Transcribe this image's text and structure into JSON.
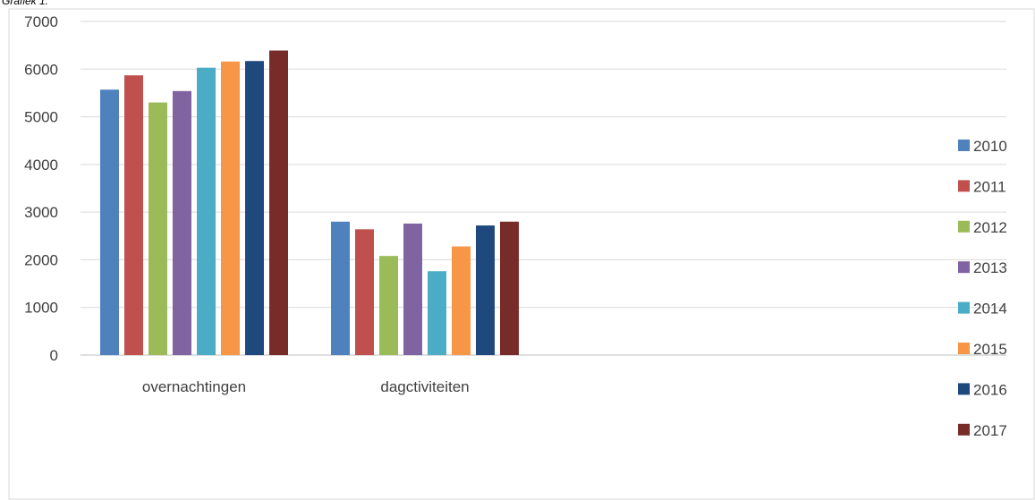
{
  "caption": "Grafiek 1.",
  "chart_data": {
    "type": "bar",
    "categories": [
      "overnachtingen",
      "dagctiviteiten"
    ],
    "series": [
      {
        "name": "2010",
        "color": "#4F81BD",
        "values": [
          5570,
          2800
        ]
      },
      {
        "name": "2011",
        "color": "#C0504D",
        "values": [
          5870,
          2640
        ]
      },
      {
        "name": "2012",
        "color": "#9BBB59",
        "values": [
          5300,
          2080
        ]
      },
      {
        "name": "2013",
        "color": "#8064A2",
        "values": [
          5540,
          2760
        ]
      },
      {
        "name": "2014",
        "color": "#4BACC6",
        "values": [
          6030,
          1760
        ]
      },
      {
        "name": "2015",
        "color": "#F79646",
        "values": [
          6160,
          2280
        ]
      },
      {
        "name": "2016",
        "color": "#1F497D",
        "values": [
          6170,
          2720
        ]
      },
      {
        "name": "2017",
        "color": "#772C2A",
        "values": [
          6390,
          2800
        ]
      }
    ],
    "ylim": [
      0,
      7000
    ],
    "yticks": [
      "0",
      "1000",
      "2000",
      "3000",
      "4000",
      "5000",
      "6000",
      "7000"
    ],
    "grid": true,
    "legend": "right"
  }
}
